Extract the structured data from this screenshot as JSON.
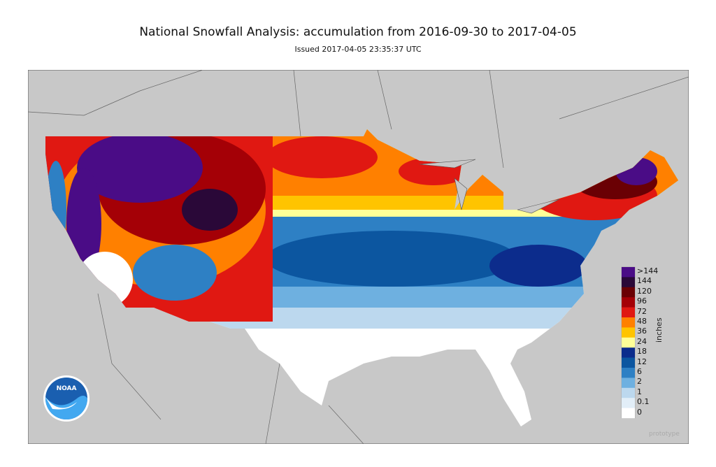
{
  "title": "National Snowfall Analysis: accumulation from 2016-09-30 to 2017-04-05",
  "subtitle": "Issued 2017-04-05 23:35:37 UTC",
  "legend": {
    "units": "inches",
    "bins": [
      {
        "label": ">144",
        "color": "#4a0c86"
      },
      {
        "label": "144",
        "color": "#2a0838"
      },
      {
        "label": "120",
        "color": "#6a0004"
      },
      {
        "label": "96",
        "color": "#a40006"
      },
      {
        "label": "72",
        "color": "#e01812"
      },
      {
        "label": "48",
        "color": "#ff8000"
      },
      {
        "label": "36",
        "color": "#ffc400"
      },
      {
        "label": "24",
        "color": "#ffff98"
      },
      {
        "label": "18",
        "color": "#0c2c8c"
      },
      {
        "label": "12",
        "color": "#0c56a0"
      },
      {
        "label": "6",
        "color": "#2e80c4"
      },
      {
        "label": "2",
        "color": "#6eb0e0"
      },
      {
        "label": "1",
        "color": "#bcd8ee"
      },
      {
        "label": "0.1",
        "color": "#e2eef8"
      },
      {
        "label": "0",
        "color": "#ffffff"
      }
    ]
  },
  "watermark": "prototype",
  "logo": {
    "text": "NOAA"
  }
}
